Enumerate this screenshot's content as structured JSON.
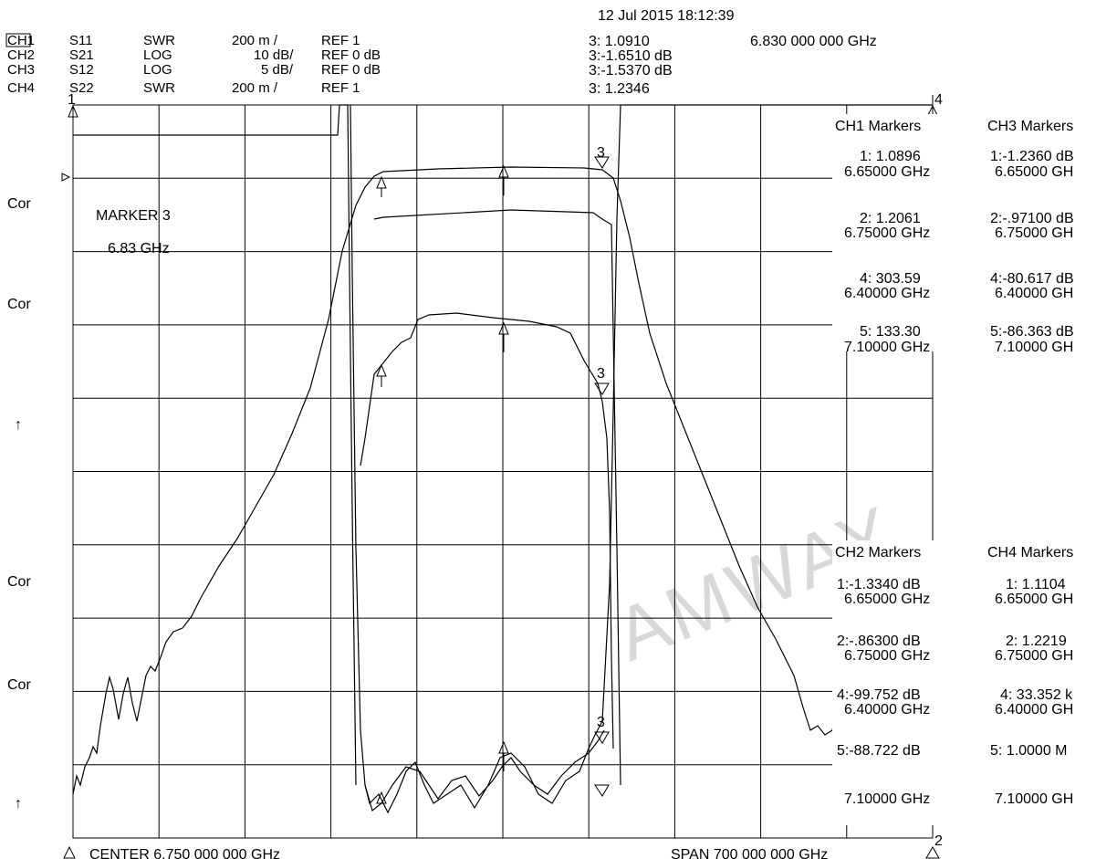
{
  "header": {
    "datetime": "12 Jul 2015  18:12:39",
    "channels": [
      {
        "ch": "CH1",
        "param": "S11",
        "format": "SWR",
        "scale": "200 m /",
        "ref": "REF 1"
      },
      {
        "ch": "CH2",
        "param": "S21",
        "format": "LOG",
        "scale": "10 dB/",
        "ref": "REF 0 dB"
      },
      {
        "ch": "CH3",
        "param": "S12",
        "format": "LOG",
        "scale": "5 dB/",
        "ref": "REF 0 dB"
      },
      {
        "ch": "CH4",
        "param": "S22",
        "format": "SWR",
        "scale": "200 m /",
        "ref": "REF 1"
      }
    ],
    "active_marker_values": [
      "3: 1.0910",
      "3:-1.6510 dB",
      "3:-1.5370 dB",
      "3: 1.2346"
    ],
    "active_marker_freq": "6.830 000 000 GHz"
  },
  "left_labels": [
    "Cor",
    "Cor",
    "Cor",
    "Cor"
  ],
  "small_labels": [
    "↑",
    "↑"
  ],
  "marker_annotation": {
    "title": "MARKER 3",
    "freq": "6.83 GHz"
  },
  "bottom": {
    "center": "CENTER 6.750 000 000 GHz",
    "span": "SPAN  700 000 000 GHz"
  },
  "marker_tables": {
    "ch1": {
      "title": "CH1 Markers",
      "entries": [
        {
          "value": "1: 1.0896",
          "freq": "6.65000 GHz"
        },
        {
          "value": "2: 1.2061",
          "freq": "6.75000 GHz"
        },
        {
          "value": "4: 303.59",
          "freq": "6.40000 GHz"
        },
        {
          "value": "5: 133.30",
          "freq": "7.10000 GHz"
        }
      ]
    },
    "ch3": {
      "title": "CH3 Markers",
      "entries": [
        {
          "value": "1:-1.2360 dB",
          "freq": "6.65000 GH"
        },
        {
          "value": "2:-.97100 dB",
          "freq": "6.75000 GH"
        },
        {
          "value": "4:-80.617 dB",
          "freq": "6.40000 GH"
        },
        {
          "value": "5:-86.363 dB",
          "freq": "7.10000 GH"
        }
      ]
    },
    "ch2": {
      "title": "CH2 Markers",
      "entries": [
        {
          "value": "1:-1.3340 dB",
          "freq": "6.65000 GHz"
        },
        {
          "value": "2:-.86300 dB",
          "freq": "6.75000 GHz"
        },
        {
          "value": "4:-99.752 dB",
          "freq": "6.40000 GHz"
        },
        {
          "value": "5:-88.722 dB",
          "freq": "7.10000 GHz"
        }
      ]
    },
    "ch4": {
      "title": "CH4 Markers",
      "entries": [
        {
          "value": "1: 1.1104",
          "freq": "6.65000 GH"
        },
        {
          "value": "2: 1.2219",
          "freq": "6.75000 GH"
        },
        {
          "value": "4: 33.352 k",
          "freq": "6.40000 GH"
        },
        {
          "value": "5: 1.0000 M",
          "freq": "7.10000 GH"
        }
      ]
    }
  },
  "marker_labels": [
    "1",
    "2",
    "3",
    "4"
  ],
  "watermark": "AMWAY",
  "chart_data": {
    "type": "line",
    "x_unit": "GHz",
    "xlim": [
      6.4,
      7.1
    ],
    "grid": true,
    "divisions": {
      "x": 10,
      "y": 10
    },
    "series": [
      {
        "name": "CH1 S11 SWR",
        "x": [
          6.4,
          6.57,
          6.575,
          6.58,
          6.6,
          6.65,
          6.7,
          6.75,
          6.8,
          6.83,
          6.835,
          6.84,
          6.9,
          7.1
        ],
        "y": [
          303.6,
          300,
          60,
          1.5,
          1.15,
          1.09,
          1.2,
          1.21,
          1.15,
          1.09,
          1.5,
          200,
          300,
          133.3
        ]
      },
      {
        "name": "CH2 S21 LOG",
        "x": [
          6.4,
          6.45,
          6.5,
          6.55,
          6.6,
          6.65,
          6.7,
          6.75,
          6.8,
          6.83,
          6.85,
          6.9,
          6.95,
          7.0,
          7.05,
          7.1
        ],
        "y": [
          -99.8,
          -80,
          -60,
          -38,
          -12,
          -1.33,
          -0.9,
          -0.86,
          -1.1,
          -1.65,
          -12,
          -38,
          -60,
          -80,
          -88,
          -88.7
        ]
      },
      {
        "name": "CH3 S12 LOG",
        "x": [
          6.4,
          6.575,
          6.6,
          6.65,
          6.68,
          6.7,
          6.75,
          6.8,
          6.82,
          6.83,
          6.84,
          6.85,
          7.1
        ],
        "y": [
          -80.6,
          -80,
          -16,
          -1.24,
          -1.0,
          -0.98,
          -0.97,
          -1.1,
          -1.4,
          -1.54,
          -12,
          -80,
          -86.4
        ]
      },
      {
        "name": "CH4 S22 SWR",
        "x": [
          6.4,
          6.57,
          6.58,
          6.6,
          6.65,
          6.7,
          6.75,
          6.8,
          6.83,
          6.84,
          7.1
        ],
        "y": [
          33352,
          30000,
          1.6,
          1.2,
          1.11,
          1.25,
          1.22,
          1.18,
          1.23,
          1.6,
          1000000
        ]
      }
    ]
  }
}
